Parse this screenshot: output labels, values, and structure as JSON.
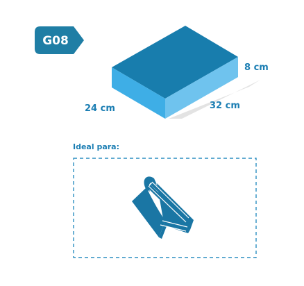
{
  "product": {
    "code": "G08"
  },
  "dimensions": {
    "width": "24 cm",
    "length": "32 cm",
    "height": "8 cm"
  },
  "ideal": {
    "label": "Ideal para:",
    "icon": "book-icon"
  },
  "colors": {
    "badge": "#1f7ea5",
    "box_top": "#187dad",
    "box_front": "#3eaee6",
    "box_side": "#6fc3ee",
    "shadow": "#e3e3e3",
    "text": "#1b7eb3",
    "dashed_border": "#2c8ec0",
    "book": "#1a76a4"
  }
}
